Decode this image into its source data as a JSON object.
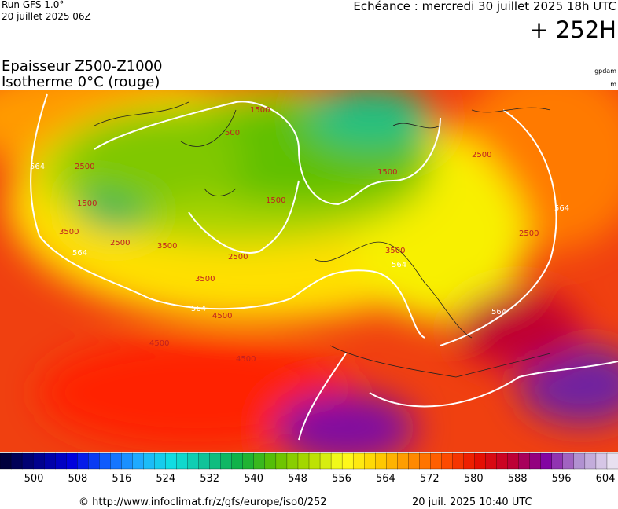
{
  "header": {
    "run": "Run GFS 1.0°",
    "run_date": "20 juillet 2025 06Z",
    "echeance": "Echéance : mercredi 30 juillet 2025 18h UTC",
    "lead": "+ 252H"
  },
  "title": {
    "line1": "Epaisseur Z500-Z1000",
    "line2": "Isotherme 0°C (rouge)",
    "unit1": "gpdam",
    "unit2": "m"
  },
  "map": {
    "contour_labels": [
      "564",
      "564",
      "564",
      "564",
      "564",
      "564",
      "1500",
      "1500",
      "1500",
      "1500",
      "2500",
      "2500",
      "2500",
      "2500",
      "2500",
      "3500",
      "3500",
      "3500",
      "3500",
      "4500",
      "4500",
      "4500",
      "500"
    ]
  },
  "colorbar": {
    "colors": [
      "#00003c",
      "#000090",
      "#0000e0",
      "#1060ff",
      "#20b0ff",
      "#10e0e0",
      "#10c090",
      "#10b040",
      "#60c000",
      "#b0dc00",
      "#ffff20",
      "#ffd000",
      "#ff9000",
      "#ff5000",
      "#e81000",
      "#c00030",
      "#8000a0",
      "#b090d0",
      "#e8e0f0"
    ],
    "ticks": [
      500,
      508,
      516,
      524,
      532,
      540,
      548,
      556,
      564,
      572,
      580,
      588,
      596,
      604
    ]
  },
  "footer": {
    "url": "© http://www.infoclimat.fr/z/gfs/europe/iso0/252",
    "generated": "20 juil. 2025 10:40 UTC"
  }
}
